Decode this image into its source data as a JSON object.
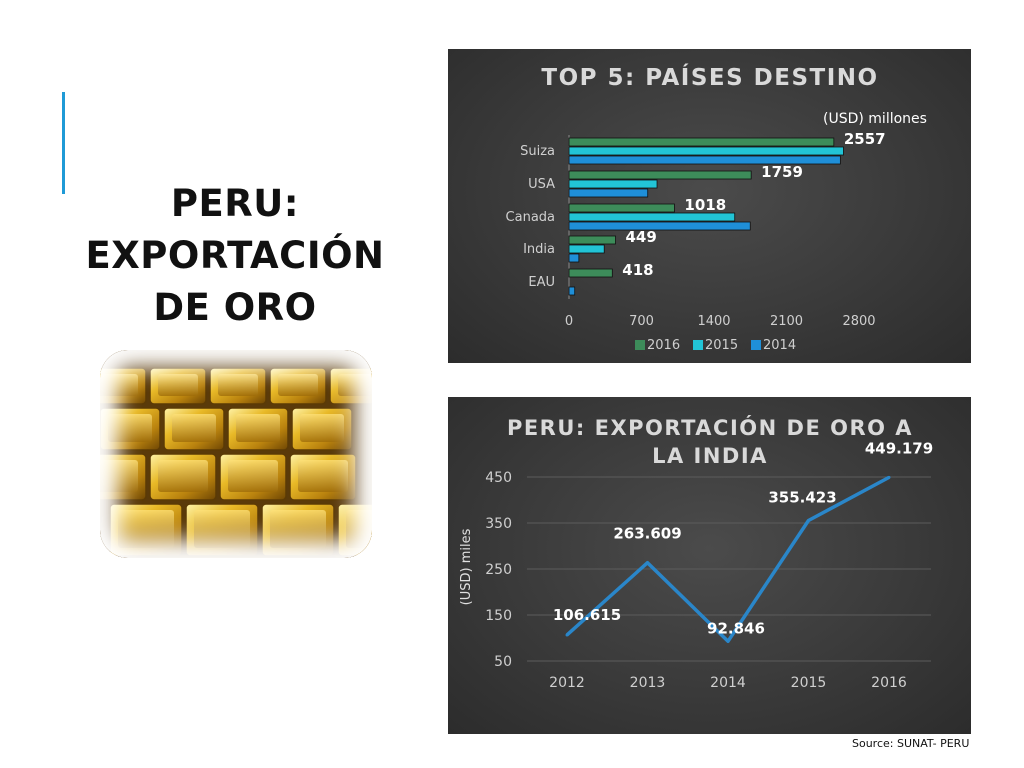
{
  "slide": {
    "title_lines": [
      "PERU:",
      "EXPORTACIÓN",
      "DE ORO"
    ],
    "source": "Source: SUNAT- PERU",
    "accent_color": "#1f9ad6"
  },
  "chart_data": [
    {
      "type": "bar",
      "orientation": "horizontal",
      "title": "TOP 5: PAÍSES DESTINO",
      "unit_label": "(USD) millones",
      "categories": [
        "Suiza",
        "USA",
        "Canada",
        "India",
        "EAU"
      ],
      "series": [
        {
          "name": "2016",
          "color": "#3d8c5a",
          "values": [
            2557,
            1759,
            1018,
            449,
            418
          ]
        },
        {
          "name": "2015",
          "color": "#22c4d6",
          "values": [
            2650,
            850,
            1600,
            340,
            0
          ]
        },
        {
          "name": "2014",
          "color": "#1f8fd8",
          "values": [
            2620,
            760,
            1750,
            95,
            55
          ]
        }
      ],
      "data_labels": [
        "2557",
        "1759",
        "1018",
        "449",
        "418"
      ],
      "xlim": [
        0,
        2800
      ],
      "x_ticks": [
        "0",
        "700",
        "1400",
        "2100",
        "2800"
      ],
      "legend_position": "bottom",
      "grid": false
    },
    {
      "type": "line",
      "title": "PERU: EXPORTACIÓN DE ORO A LA INDIA",
      "title_lines": [
        "PERU: EXPORTACIÓN DE ORO A",
        "LA INDIA"
      ],
      "ylabel": "(USD) miles",
      "x": [
        "2012",
        "2013",
        "2014",
        "2015",
        "2016"
      ],
      "series": [
        {
          "color": "#2a86c9",
          "values": [
            106.615,
            263.609,
            92.846,
            355.423,
            449.179
          ]
        }
      ],
      "data_labels": [
        "106.615",
        "263.609",
        "92.846",
        "355.423",
        "449.179"
      ],
      "ylim": [
        50,
        450
      ],
      "y_ticks": [
        "450",
        "350",
        "250",
        "150",
        "50"
      ],
      "grid": true
    }
  ]
}
